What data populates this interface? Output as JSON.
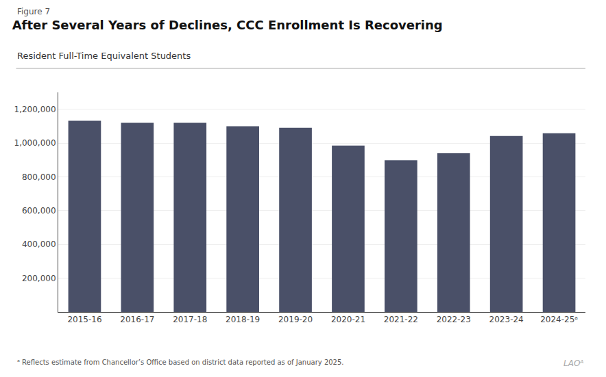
{
  "chart_data": {
    "type": "bar",
    "title": "After Several Years of Declines, CCC Enrollment Is Recovering",
    "subtitle": "Resident Full-Time Equivalent Students",
    "annotations": [
      "Figure 7",
      "ᵃ Reflects estimate from Chancellor’s Office based on district data reported as of January 2025.",
      "LAOᴬ"
    ],
    "categories": [
      "2015-16",
      "2016-17",
      "2017-18",
      "2018-19",
      "2019-20",
      "2020-21",
      "2021-22",
      "2022-23",
      "2023-24",
      "2024-25ᵃ"
    ],
    "values": [
      1132000,
      1120000,
      1120000,
      1100000,
      1090000,
      985000,
      898000,
      940000,
      1042000,
      1058000
    ],
    "color": "#4a5068",
    "ylim": [
      0,
      1300000
    ],
    "yticks": [
      {
        "value": 200000,
        "label": "200,000"
      },
      {
        "value": 400000,
        "label": "400,000"
      },
      {
        "value": 600000,
        "label": "600,000"
      },
      {
        "value": 800000,
        "label": "800,000"
      },
      {
        "value": 1000000,
        "label": "1,000,000"
      },
      {
        "value": 1200000,
        "label": "1,200,000"
      }
    ],
    "grid": true
  }
}
